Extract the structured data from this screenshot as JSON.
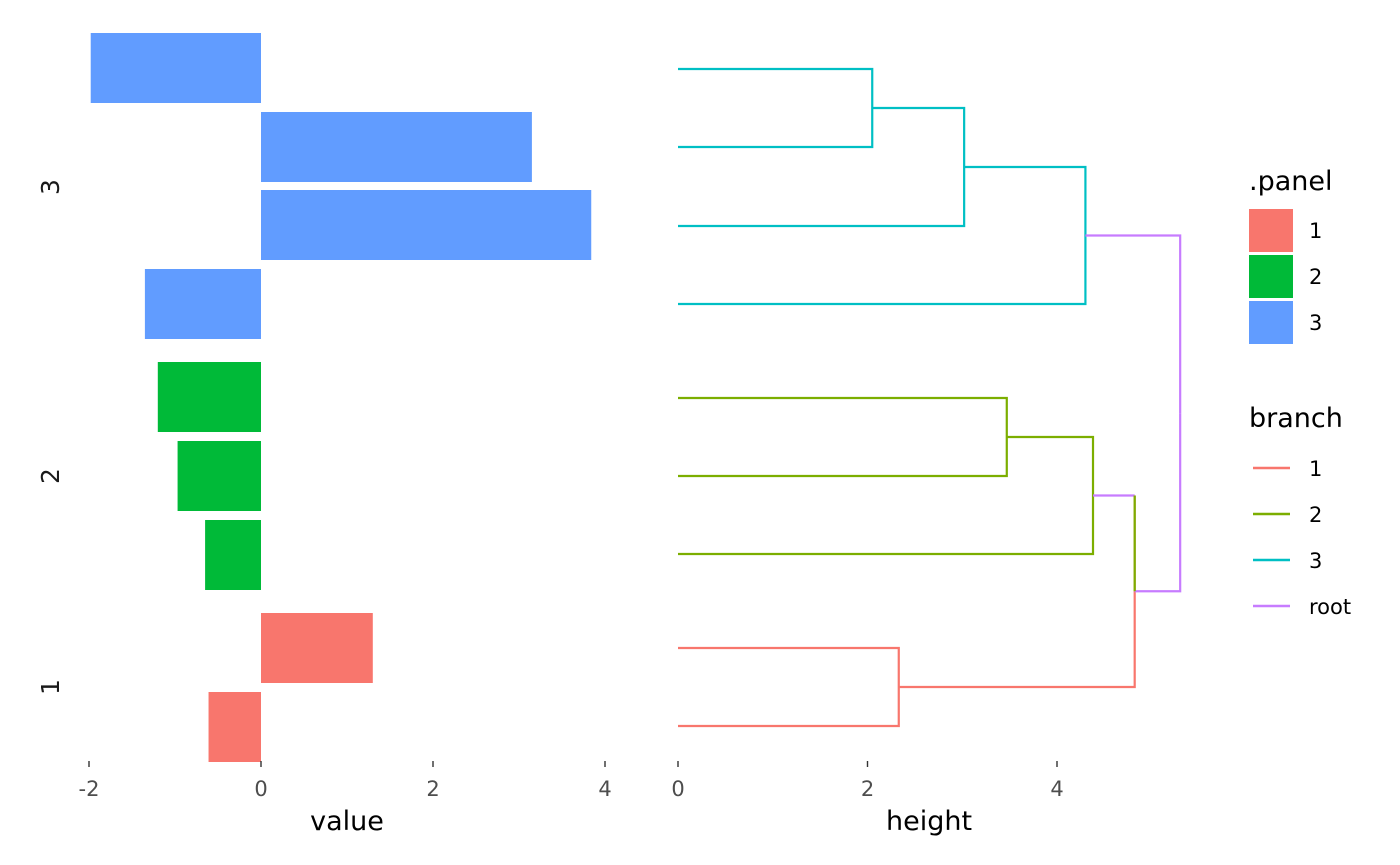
{
  "chart_data": [
    {
      "type": "bar",
      "orientation": "horizontal",
      "xlabel": "value",
      "xlim": [
        -2,
        4
      ],
      "xticks": [
        "-2",
        "0",
        "2",
        "4"
      ],
      "facets": [
        {
          "label": "3",
          "color": "#619CFF",
          "values": [
            -1.98,
            3.15,
            3.84,
            -1.35
          ]
        },
        {
          "label": "2",
          "color": "#00BA38",
          "values": [
            -1.2,
            -0.97,
            -0.65
          ]
        },
        {
          "label": "1",
          "color": "#F8766D",
          "values": [
            1.3,
            -0.61
          ]
        }
      ]
    },
    {
      "type": "dendrogram",
      "orientation": "horizontal",
      "xlabel": "height",
      "xlim": [
        0,
        5.3
      ],
      "xticks": [
        "0",
        "2",
        "4"
      ],
      "merges": [
        {
          "height": 2.05,
          "branch": "3"
        },
        {
          "height": 3.02,
          "branch": "3"
        },
        {
          "height": 4.3,
          "branch": "3"
        },
        {
          "height": 3.47,
          "branch": "2"
        },
        {
          "height": 4.38,
          "branch": "2"
        },
        {
          "height": 4.82,
          "branch": "root"
        },
        {
          "height": 2.33,
          "branch": "1"
        },
        {
          "height": 4.82,
          "branch": "1"
        },
        {
          "height": 5.3,
          "branch": "root"
        }
      ]
    }
  ],
  "legends": {
    "panel": {
      "title": ".panel",
      "items": [
        {
          "label": "1",
          "color": "#F8766D"
        },
        {
          "label": "2",
          "color": "#00BA38"
        },
        {
          "label": "3",
          "color": "#619CFF"
        }
      ]
    },
    "branch": {
      "title": "branch",
      "items": [
        {
          "label": "1",
          "color": "#F8766D"
        },
        {
          "label": "2",
          "color": "#7CAE00"
        },
        {
          "label": "3",
          "color": "#00BFC4"
        },
        {
          "label": "root",
          "color": "#C77CFF"
        }
      ]
    }
  }
}
